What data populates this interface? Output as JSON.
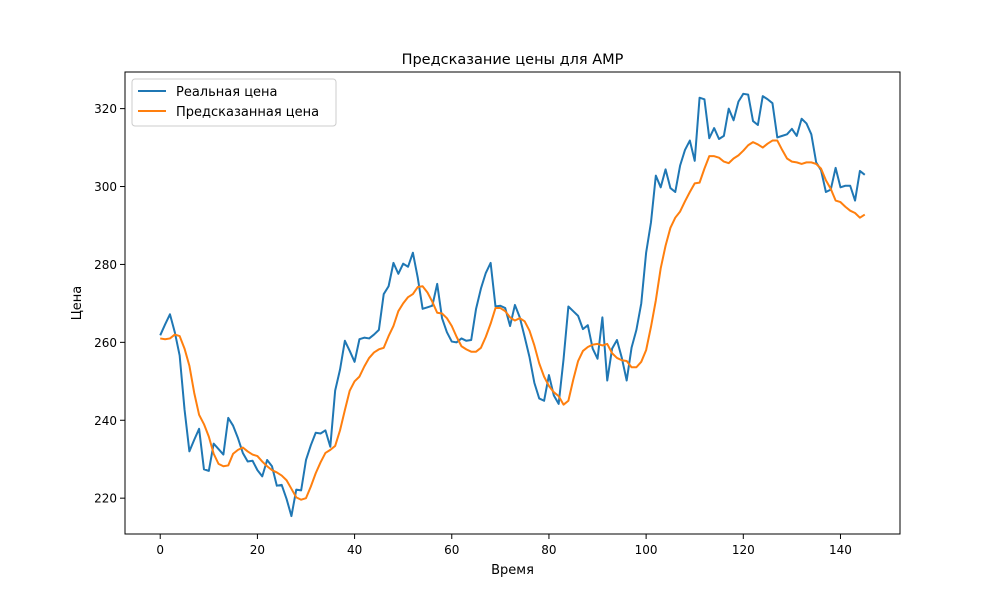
{
  "chart_data": {
    "type": "line",
    "title": "Предсказание цены для AMP",
    "xlabel": "Время",
    "ylabel": "Цена",
    "xlim": [
      -7.25,
      152.25
    ],
    "ylim": [
      210.8,
      329.4
    ],
    "x_ticks": [
      0,
      20,
      40,
      60,
      80,
      100,
      120,
      140
    ],
    "y_ticks": [
      220,
      240,
      260,
      280,
      300,
      320
    ],
    "grid": false,
    "legend_position": "top-left",
    "series": [
      {
        "name": "Реальная цена",
        "color": "#1f77b4",
        "values": [
          261.8,
          264.6,
          267.2,
          262.6,
          256.6,
          242.8,
          232.0,
          235.0,
          237.8,
          227.4,
          227.0,
          234.0,
          232.6,
          231.2,
          240.6,
          238.6,
          235.4,
          231.6,
          229.4,
          229.6,
          227.2,
          225.6,
          229.8,
          228.2,
          223.2,
          223.4,
          219.8,
          215.4,
          222.2,
          222.0,
          229.8,
          233.6,
          236.8,
          236.6,
          237.4,
          233.2,
          247.6,
          253.0,
          260.4,
          257.8,
          255.0,
          260.8,
          261.2,
          261.0,
          262.0,
          263.2,
          272.4,
          274.4,
          280.4,
          277.6,
          280.2,
          279.4,
          283.0,
          276.6,
          268.6,
          269.0,
          269.4,
          275.0,
          266.2,
          262.6,
          260.2,
          260.0,
          261.0,
          260.4,
          260.6,
          268.6,
          273.8,
          277.8,
          280.4,
          269.2,
          269.4,
          268.8,
          264.2,
          269.6,
          266.4,
          261.4,
          256.2,
          249.6,
          245.6,
          245.0,
          251.6,
          246.4,
          244.2,
          255.6,
          269.2,
          268.0,
          266.8,
          263.4,
          264.4,
          258.4,
          255.8,
          266.4,
          250.2,
          258.4,
          260.6,
          256.0,
          250.2,
          258.6,
          263.2,
          270.0,
          283.0,
          290.8,
          302.8,
          299.8,
          304.4,
          299.6,
          298.6,
          305.4,
          309.4,
          311.8,
          306.6,
          322.8,
          322.4,
          312.4,
          315.0,
          312.2,
          313.0,
          320.0,
          317.0,
          321.8,
          323.8,
          323.6,
          316.8,
          315.8,
          323.2,
          322.4,
          321.4,
          312.6,
          313.0,
          313.4,
          314.8,
          313.0,
          317.4,
          316.2,
          313.4,
          306.2,
          304.2,
          298.6,
          299.2,
          304.8,
          299.8,
          300.2,
          300.2,
          296.4,
          304.0,
          303.0
        ]
      },
      {
        "name": "Предсказанная цена",
        "color": "#ff7f0e",
        "values": [
          261.0,
          260.8,
          261.0,
          262.0,
          261.6,
          258.4,
          254.0,
          247.0,
          241.4,
          239.0,
          235.8,
          231.4,
          228.8,
          228.2,
          228.4,
          231.4,
          232.4,
          233.0,
          232.0,
          231.2,
          230.8,
          229.4,
          228.2,
          227.2,
          226.6,
          225.8,
          224.6,
          222.4,
          220.2,
          219.6,
          220.0,
          223.0,
          226.4,
          229.2,
          231.6,
          232.4,
          233.4,
          237.4,
          242.6,
          247.6,
          250.0,
          251.2,
          253.8,
          256.0,
          257.4,
          258.2,
          258.6,
          261.6,
          264.2,
          268.0,
          270.0,
          271.6,
          272.4,
          274.2,
          274.4,
          272.8,
          270.4,
          267.6,
          267.4,
          266.2,
          264.2,
          261.4,
          259.0,
          258.2,
          257.6,
          257.6,
          258.6,
          261.4,
          264.8,
          268.8,
          268.8,
          268.0,
          266.4,
          265.6,
          266.2,
          265.4,
          263.0,
          259.2,
          254.6,
          251.2,
          248.8,
          247.2,
          246.2,
          244.0,
          245.0,
          250.4,
          255.2,
          257.8,
          258.8,
          259.4,
          259.6,
          259.2,
          259.6,
          257.2,
          256.0,
          255.4,
          255.2,
          253.6,
          253.6,
          255.0,
          258.0,
          264.0,
          270.8,
          279.0,
          284.8,
          289.4,
          292.0,
          293.6,
          296.2,
          298.6,
          300.8,
          301.0,
          304.6,
          307.8,
          307.8,
          307.4,
          306.4,
          306.0,
          307.2,
          308.0,
          309.2,
          310.6,
          311.4,
          310.8,
          310.0,
          311.0,
          311.8,
          311.8,
          309.4,
          307.2,
          306.4,
          306.2,
          305.8,
          306.2,
          306.2,
          305.8,
          304.6,
          301.6,
          299.4,
          296.4,
          296.0,
          294.8,
          293.8,
          293.2,
          292.0,
          292.8
        ]
      }
    ]
  }
}
